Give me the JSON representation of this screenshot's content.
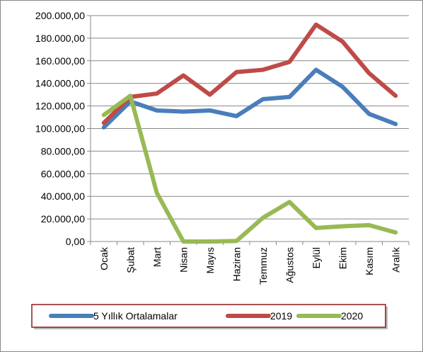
{
  "chart_data": {
    "type": "line",
    "categories": [
      "Ocak",
      "Şubat",
      "Mart",
      "Nisan",
      "Mayıs",
      "Haziran",
      "Temmuz",
      "Ağustos",
      "Eylül",
      "Ekim",
      "Kasım",
      "Aralık"
    ],
    "series": [
      {
        "name": "5 Yıllık Ortalamalar",
        "color": "#4a7ebb",
        "values": [
          101000,
          124000,
          116000,
          115000,
          116000,
          111000,
          126000,
          128000,
          152000,
          137000,
          113000,
          104000
        ]
      },
      {
        "name": "2019",
        "color": "#be4b48",
        "values": [
          105000,
          128000,
          131000,
          147000,
          130000,
          150000,
          152000,
          159000,
          192000,
          177000,
          149000,
          129000
        ]
      },
      {
        "name": "2020",
        "color": "#98b954",
        "values": [
          112000,
          129000,
          43000,
          0,
          0,
          500,
          21000,
          35000,
          12000,
          13500,
          14500,
          8000
        ]
      }
    ],
    "ylim": [
      0,
      200000
    ],
    "yticks": [
      {
        "value": 0,
        "label": "0,00"
      },
      {
        "value": 20000,
        "label": "20.000,00"
      },
      {
        "value": 40000,
        "label": "40.000,00"
      },
      {
        "value": 60000,
        "label": "60.000,00"
      },
      {
        "value": 80000,
        "label": "80.000,00"
      },
      {
        "value": 100000,
        "label": "100.000,00"
      },
      {
        "value": 120000,
        "label": "120.000,00"
      },
      {
        "value": 140000,
        "label": "140.000,00"
      },
      {
        "value": 160000,
        "label": "160.000,00"
      },
      {
        "value": 180000,
        "label": "180.000,00"
      },
      {
        "value": 200000,
        "label": "200.000,00"
      }
    ],
    "grid": true,
    "legend": "bottom"
  }
}
